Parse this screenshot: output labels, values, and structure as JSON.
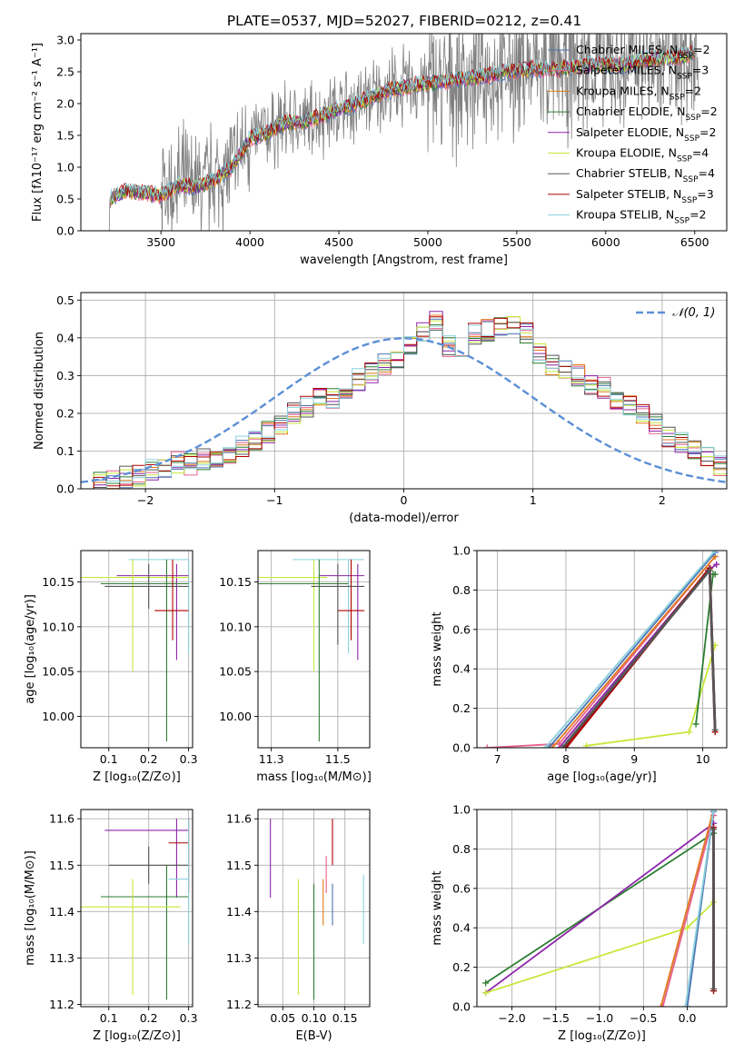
{
  "figure_title": "PLATE=0537, MJD=52027, FIBERID=0212, z=0.41",
  "colors": {
    "chabrier_miles": "#4c72b0",
    "salpeter_miles": "#e8608c",
    "kroupa_miles": "#e07b1a",
    "chabrier_elodie": "#2e7d32",
    "salpeter_elodie": "#8e24aa",
    "kroupa_elodie": "#c6e83a",
    "chabrier_stelib": "#555555",
    "salpeter_stelib": "#b00000",
    "kroupa_stelib": "#8ad0dc",
    "data": "#808080",
    "gaussian": "#5b8fd6",
    "grid": "#b0b0b0"
  },
  "chart_data": [
    {
      "id": "spectrum",
      "type": "line",
      "xlabel": "wavelength [Angstrom, rest frame]",
      "ylabel": "Flux [fλ10⁻¹⁷ erg cm⁻² s⁻¹ A⁻¹]",
      "xlim": [
        3050,
        6680
      ],
      "ylim": [
        0,
        3.1
      ],
      "xticks": [
        3500,
        4000,
        4500,
        5000,
        5500,
        6000,
        6500
      ],
      "yticks": [
        0.0,
        0.5,
        1.0,
        1.5,
        2.0,
        2.5,
        3.0
      ],
      "grid": false,
      "legend_position": "top-right",
      "legend": [
        {
          "label": "Chabrier MILES, N",
          "sub": "SSP",
          "suffix": "=2",
          "color_key": "chabrier_miles"
        },
        {
          "label": "Salpeter MILES, N",
          "sub": "SSP",
          "suffix": "=3",
          "color_key": "salpeter_miles"
        },
        {
          "label": "Kroupa MILES, N",
          "sub": "SSP",
          "suffix": "=2",
          "color_key": "kroupa_miles"
        },
        {
          "label": "Chabrier ELODIE, N",
          "sub": "SSP",
          "suffix": "=2",
          "color_key": "chabrier_elodie"
        },
        {
          "label": "Salpeter ELODIE, N",
          "sub": "SSP",
          "suffix": "=2",
          "color_key": "salpeter_elodie"
        },
        {
          "label": "Kroupa ELODIE, N",
          "sub": "SSP",
          "suffix": "=4",
          "color_key": "kroupa_elodie"
        },
        {
          "label": "Chabrier STELIB, N",
          "sub": "SSP",
          "suffix": "=4",
          "color_key": "chabrier_stelib"
        },
        {
          "label": "Salpeter STELIB, N",
          "sub": "SSP",
          "suffix": "=3",
          "color_key": "salpeter_stelib"
        },
        {
          "label": "Kroupa STELIB, N",
          "sub": "SSP",
          "suffix": "=2",
          "color_key": "kroupa_stelib"
        }
      ],
      "model_continuum": {
        "x": [
          3210,
          3300,
          3400,
          3500,
          3600,
          3700,
          3800,
          3900,
          4000,
          4100,
          4200,
          4300,
          4400,
          4500,
          4600,
          4700,
          4800,
          4900,
          5000,
          5100,
          5200,
          5300,
          5400,
          5500,
          5600,
          5700,
          5800,
          5900,
          6000,
          6100,
          6200,
          6300,
          6400,
          6500
        ],
        "y": [
          0.5,
          0.62,
          0.6,
          0.55,
          0.72,
          0.68,
          0.8,
          1.0,
          1.45,
          1.55,
          1.7,
          1.72,
          1.8,
          1.92,
          2.0,
          2.12,
          2.22,
          2.28,
          2.32,
          2.35,
          2.4,
          2.42,
          2.48,
          2.52,
          2.55,
          2.52,
          2.58,
          2.6,
          2.62,
          2.6,
          2.68,
          2.7,
          2.72,
          2.8
        ]
      },
      "data_line_x_range": [
        3210,
        6520
      ]
    },
    {
      "id": "residuals",
      "type": "area",
      "xlabel": "(data-model)/error",
      "ylabel": "Normed distribution",
      "xlim": [
        -2.5,
        2.5
      ],
      "ylim": [
        0,
        0.52
      ],
      "xticks": [
        -2,
        -1,
        0,
        1,
        2
      ],
      "yticks": [
        0.0,
        0.1,
        0.2,
        0.3,
        0.4,
        0.5
      ],
      "grid": true,
      "legend_position": "top-right",
      "legend_label": "𝒩(0, 1)",
      "bin_width": 0.1,
      "bin_start": -2.5,
      "histogram_values": [
        0.015,
        0.018,
        0.02,
        0.03,
        0.035,
        0.05,
        0.06,
        0.07,
        0.065,
        0.08,
        0.085,
        0.09,
        0.11,
        0.13,
        0.15,
        0.17,
        0.2,
        0.22,
        0.25,
        0.24,
        0.27,
        0.29,
        0.31,
        0.33,
        0.35,
        0.38,
        0.42,
        0.44,
        0.38,
        0.34,
        0.41,
        0.42,
        0.43,
        0.44,
        0.41,
        0.36,
        0.33,
        0.31,
        0.3,
        0.28,
        0.27,
        0.24,
        0.22,
        0.2,
        0.17,
        0.14,
        0.12,
        0.1,
        0.08,
        0.06
      ]
    },
    {
      "id": "age_vs_Z",
      "type": "scatter",
      "xlabel": "Z [log₁₀(Z/Z⊙)]",
      "ylabel": "age  [log₁₀(age/yr)]",
      "xlim": [
        0.03,
        0.31
      ],
      "ylim": [
        9.965,
        10.185
      ],
      "xticks": [
        0.1,
        0.2,
        0.3
      ],
      "yticks": [
        10.0,
        10.05,
        10.1,
        10.15
      ],
      "grid": true,
      "errorbars": [
        {
          "color_key": "kroupa_stelib",
          "x": 0.3,
          "y": 10.175,
          "xerr": [
            0.15,
            0.3
          ],
          "yerr": [
            10.07,
            10.175
          ]
        },
        {
          "color_key": "salpeter_elodie",
          "x": 0.27,
          "y": 10.157,
          "xerr": [
            0.12,
            0.3
          ],
          "yerr": [
            10.063,
            10.17
          ]
        },
        {
          "color_key": "kroupa_elodie",
          "x": 0.16,
          "y": 10.155,
          "xerr": [
            0.03,
            0.3
          ],
          "yerr": [
            10.05,
            10.175
          ]
        },
        {
          "color_key": "chabrier_elodie",
          "x": 0.245,
          "y": 10.148,
          "xerr": [
            0.08,
            0.3
          ],
          "yerr": [
            9.972,
            10.175
          ]
        },
        {
          "color_key": "salpeter_stelib",
          "x": 0.26,
          "y": 10.118,
          "xerr": [
            0.215,
            0.3
          ],
          "yerr": [
            10.085,
            10.175
          ]
        },
        {
          "color_key": "chabrier_stelib",
          "x": 0.2,
          "y": 10.145,
          "xerr": [
            0.09,
            0.3
          ],
          "yerr": [
            10.12,
            10.17
          ]
        }
      ]
    },
    {
      "id": "age_vs_mass",
      "type": "scatter",
      "xlabel": "mass [log₁₀(M/M⊙)]",
      "ylabel": "",
      "xlim": [
        11.2,
        11.62
      ],
      "ylim": [
        9.965,
        10.185
      ],
      "xticks": [
        11.25,
        11.5
      ],
      "yticks": [
        10.0,
        10.05,
        10.1,
        10.15
      ],
      "grid": true,
      "errorbars": [
        {
          "color_key": "kroupa_stelib",
          "x": 11.54,
          "y": 10.175,
          "xerr": [
            11.33,
            11.6
          ],
          "yerr": [
            10.07,
            10.175
          ]
        },
        {
          "color_key": "salpeter_elodie",
          "x": 11.575,
          "y": 10.157,
          "xerr": [
            11.43,
            11.6
          ],
          "yerr": [
            10.063,
            10.17
          ]
        },
        {
          "color_key": "kroupa_elodie",
          "x": 11.41,
          "y": 10.155,
          "xerr": [
            11.2,
            11.46
          ],
          "yerr": [
            10.05,
            10.175
          ]
        },
        {
          "color_key": "chabrier_elodie",
          "x": 11.43,
          "y": 10.148,
          "xerr": [
            11.2,
            11.54
          ],
          "yerr": [
            9.972,
            10.175
          ]
        },
        {
          "color_key": "salpeter_stelib",
          "x": 11.55,
          "y": 10.118,
          "xerr": [
            11.5,
            11.6
          ],
          "yerr": [
            10.085,
            10.175
          ]
        },
        {
          "color_key": "chabrier_stelib",
          "x": 11.5,
          "y": 10.145,
          "xerr": [
            11.4,
            11.6
          ],
          "yerr": [
            10.08,
            10.17
          ]
        }
      ]
    },
    {
      "id": "mass_weight_vs_age",
      "type": "line",
      "xlabel": "age  [log₁₀(age/yr)]",
      "ylabel": "mass weight",
      "xlim": [
        6.7,
        10.35
      ],
      "ylim": [
        0,
        1.0
      ],
      "xticks": [
        7,
        8,
        9,
        10
      ],
      "yticks": [
        0.0,
        0.2,
        0.4,
        0.6,
        0.8,
        1.0
      ],
      "grid": true,
      "series": [
        {
          "color_key": "kroupa_elodie",
          "x": [
            8.3,
            9.8,
            10.18
          ],
          "y": [
            0.01,
            0.08,
            0.52
          ]
        },
        {
          "color_key": "salpeter_elodie",
          "x": [
            7.9,
            10.08,
            10.2
          ],
          "y": [
            0.0,
            0.9,
            0.93
          ]
        },
        {
          "color_key": "chabrier_elodie",
          "x": [
            9.9,
            10.15,
            10.18
          ],
          "y": [
            0.12,
            0.88,
            0.88
          ]
        },
        {
          "color_key": "salpeter_miles",
          "x": [
            6.85,
            7.9,
            10.18
          ],
          "y": [
            0.0,
            0.02,
            0.97
          ]
        },
        {
          "color_key": "kroupa_miles",
          "x": [
            7.8,
            10.18
          ],
          "y": [
            0.0,
            0.97
          ]
        },
        {
          "color_key": "chabrier_miles",
          "x": [
            7.75,
            10.18
          ],
          "y": [
            0.0,
            0.99
          ]
        },
        {
          "color_key": "kroupa_stelib",
          "x": [
            7.7,
            10.18
          ],
          "y": [
            0.0,
            1.0
          ]
        },
        {
          "color_key": "salpeter_stelib",
          "x": [
            8.0,
            10.1,
            10.18
          ],
          "y": [
            0.0,
            0.91,
            0.08
          ]
        },
        {
          "color_key": "chabrier_stelib",
          "x": [
            7.95,
            10.1,
            10.18
          ],
          "y": [
            0.0,
            0.9,
            0.09
          ]
        }
      ]
    },
    {
      "id": "mass_vs_Z",
      "type": "scatter",
      "xlabel": "Z [log₁₀(Z/Z⊙)]",
      "ylabel": "mass [log₁₀(M/M⊙)]",
      "xlim": [
        0.03,
        0.31
      ],
      "ylim": [
        11.195,
        11.62
      ],
      "xticks": [
        0.1,
        0.2,
        0.3
      ],
      "yticks": [
        11.2,
        11.3,
        11.4,
        11.5,
        11.6
      ],
      "grid": true,
      "errorbars": [
        {
          "color_key": "salpeter_elodie",
          "x": 0.27,
          "y": 11.575,
          "xerr": [
            0.09,
            0.3
          ],
          "yerr": [
            11.43,
            11.6
          ]
        },
        {
          "color_key": "salpeter_stelib",
          "x": 0.3,
          "y": 11.548,
          "xerr": [
            0.25,
            0.3
          ],
          "yerr": [
            11.44,
            11.6
          ]
        },
        {
          "color_key": "chabrier_stelib",
          "x": 0.2,
          "y": 11.5,
          "xerr": [
            0.1,
            0.3
          ],
          "yerr": [
            11.46,
            11.54
          ]
        },
        {
          "color_key": "chabrier_elodie",
          "x": 0.245,
          "y": 11.432,
          "xerr": [
            0.08,
            0.3
          ],
          "yerr": [
            11.21,
            11.5
          ]
        },
        {
          "color_key": "kroupa_elodie",
          "x": 0.16,
          "y": 11.41,
          "xerr": [
            0.03,
            0.28
          ],
          "yerr": [
            11.22,
            11.47
          ]
        },
        {
          "color_key": "kroupa_stelib",
          "x": 0.3,
          "y": 11.47,
          "xerr": [
            0.25,
            0.3
          ],
          "yerr": [
            11.33,
            11.6
          ]
        }
      ]
    },
    {
      "id": "mass_vs_ebv",
      "type": "scatter",
      "xlabel": "E(B-V)",
      "ylabel": "",
      "xlim": [
        0.01,
        0.19
      ],
      "ylim": [
        11.195,
        11.62
      ],
      "xticks": [
        0.05,
        0.1,
        0.15
      ],
      "yticks": [
        11.2,
        11.3,
        11.4,
        11.5,
        11.6
      ],
      "grid": true,
      "errorbars": [
        {
          "color_key": "salpeter_elodie",
          "x": 0.03,
          "y": 11.52,
          "yerr": [
            11.43,
            11.6
          ]
        },
        {
          "color_key": "kroupa_elodie",
          "x": 0.075,
          "y": 11.35,
          "yerr": [
            11.22,
            11.47
          ]
        },
        {
          "color_key": "chabrier_elodie",
          "x": 0.1,
          "y": 11.33,
          "yerr": [
            11.21,
            11.46
          ]
        },
        {
          "color_key": "kroupa_miles",
          "x": 0.115,
          "y": 11.42,
          "yerr": [
            11.37,
            11.47
          ]
        },
        {
          "color_key": "salpeter_miles",
          "x": 0.12,
          "y": 11.48,
          "yerr": [
            11.44,
            11.52
          ]
        },
        {
          "color_key": "salpeter_stelib",
          "x": 0.13,
          "y": 11.55,
          "yerr": [
            11.5,
            11.6
          ]
        },
        {
          "color_key": "chabrier_miles",
          "x": 0.13,
          "y": 11.41,
          "yerr": [
            11.37,
            11.46
          ]
        },
        {
          "color_key": "kroupa_stelib",
          "x": 0.18,
          "y": 11.41,
          "yerr": [
            11.33,
            11.48
          ]
        }
      ]
    },
    {
      "id": "mass_weight_vs_Z",
      "type": "line",
      "xlabel": "Z [log₁₀(Z/Z⊙)]",
      "ylabel": "mass weight",
      "xlim": [
        -2.4,
        0.45
      ],
      "ylim": [
        0,
        1.0
      ],
      "xticks": [
        -2.0,
        -1.5,
        -1.0,
        -0.5,
        0.0
      ],
      "yticks": [
        0.0,
        0.2,
        0.4,
        0.6,
        0.8,
        1.0
      ],
      "grid": true,
      "series": [
        {
          "color_key": "chabrier_elodie",
          "x": [
            -2.3,
            0.3
          ],
          "y": [
            0.12,
            0.88
          ]
        },
        {
          "color_key": "salpeter_elodie",
          "x": [
            -2.3,
            0.3
          ],
          "y": [
            0.07,
            0.93
          ]
        },
        {
          "color_key": "kroupa_elodie",
          "x": [
            -2.3,
            0.0,
            0.3
          ],
          "y": [
            0.07,
            0.4,
            0.53
          ]
        },
        {
          "color_key": "kroupa_miles",
          "x": [
            -0.3,
            0.3
          ],
          "y": [
            0.0,
            1.0
          ]
        },
        {
          "color_key": "salpeter_miles",
          "x": [
            -0.28,
            0.3
          ],
          "y": [
            0.0,
            0.97
          ]
        },
        {
          "color_key": "chabrier_miles",
          "x": [
            0.0,
            0.3
          ],
          "y": [
            0.0,
            0.99
          ]
        },
        {
          "color_key": "kroupa_stelib",
          "x": [
            -0.02,
            0.3
          ],
          "y": [
            0.0,
            1.0
          ]
        },
        {
          "color_key": "salpeter_stelib",
          "x": [
            0.3,
            0.3
          ],
          "y": [
            0.08,
            0.91
          ]
        },
        {
          "color_key": "chabrier_stelib",
          "x": [
            0.3,
            0.3
          ],
          "y": [
            0.09,
            0.9
          ]
        }
      ]
    }
  ]
}
